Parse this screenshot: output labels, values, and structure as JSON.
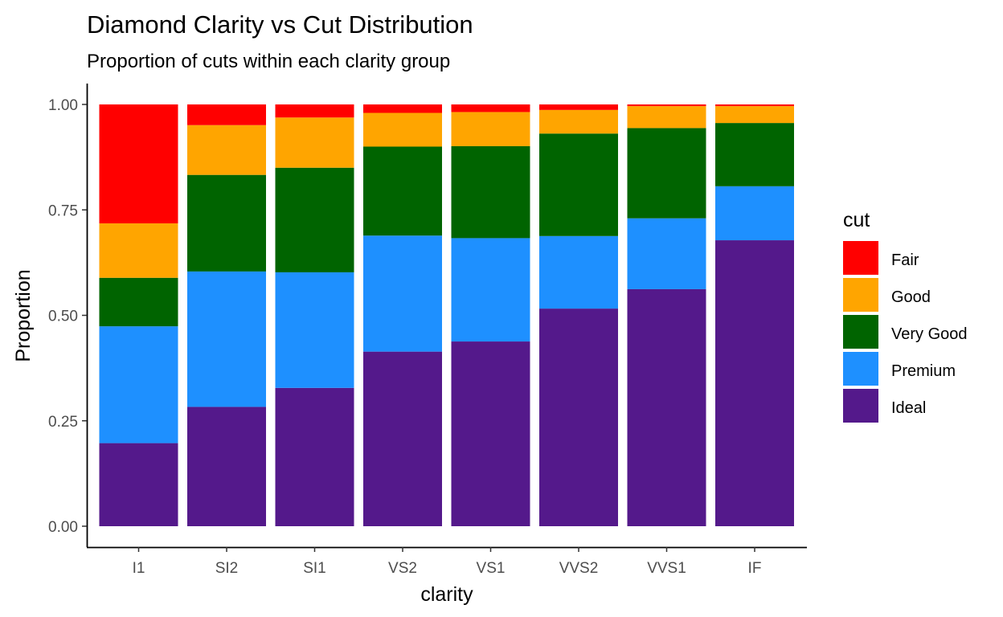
{
  "chart_data": {
    "type": "bar",
    "stacked": true,
    "title": "Diamond Clarity vs Cut Distribution",
    "subtitle": "Proportion of cuts within each clarity group",
    "xlabel": "clarity",
    "ylabel": "Proportion",
    "ylim": [
      0,
      1
    ],
    "yticks": [
      "0.00",
      "0.25",
      "0.50",
      "0.75",
      "1.00"
    ],
    "ytick_values": [
      0,
      0.25,
      0.5,
      0.75,
      1.0
    ],
    "categories": [
      "I1",
      "SI2",
      "SI1",
      "VS2",
      "VS1",
      "VVS2",
      "VVS1",
      "IF"
    ],
    "legend_title": "cut",
    "legend_position": "right",
    "grid": false,
    "series": [
      {
        "name": "Ideal",
        "color": "#54198B",
        "values": [
          0.197,
          0.283,
          0.328,
          0.414,
          0.438,
          0.516,
          0.562,
          0.678
        ]
      },
      {
        "name": "Premium",
        "color": "#1E90FF",
        "values": [
          0.277,
          0.321,
          0.274,
          0.275,
          0.245,
          0.172,
          0.168,
          0.128
        ]
      },
      {
        "name": "Very Good",
        "color": "#006400",
        "values": [
          0.115,
          0.229,
          0.248,
          0.211,
          0.218,
          0.243,
          0.214,
          0.15
        ]
      },
      {
        "name": "Good",
        "color": "#FFA500",
        "values": [
          0.129,
          0.118,
          0.119,
          0.08,
          0.081,
          0.056,
          0.052,
          0.04
        ]
      },
      {
        "name": "Fair",
        "color": "#FF0000",
        "values": [
          0.282,
          0.049,
          0.031,
          0.02,
          0.018,
          0.013,
          0.004,
          0.004
        ]
      }
    ],
    "legend_order": [
      "Fair",
      "Good",
      "Very Good",
      "Premium",
      "Ideal"
    ]
  }
}
